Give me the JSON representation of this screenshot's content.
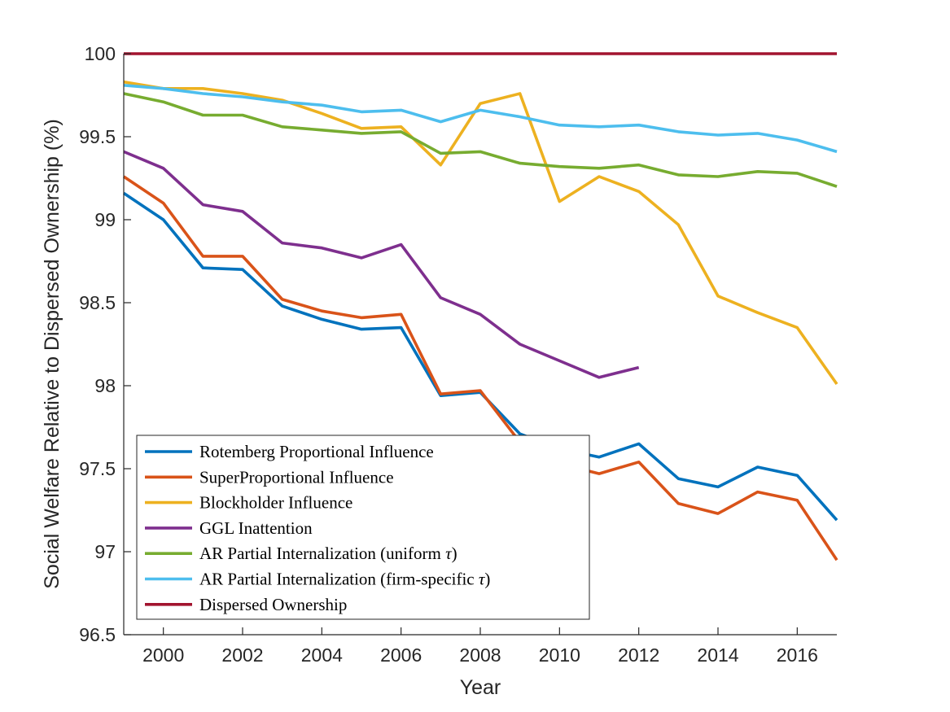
{
  "chart_data": {
    "type": "line",
    "title": "",
    "xlabel": "Year",
    "ylabel": "Social Welfare Relative to Dispersed Ownership (%)",
    "xlim": [
      1999,
      2017
    ],
    "ylim": [
      96.5,
      100
    ],
    "xticks": [
      2000,
      2002,
      2004,
      2006,
      2008,
      2010,
      2012,
      2014,
      2016
    ],
    "yticks": [
      96.5,
      97,
      97.5,
      98,
      98.5,
      99,
      99.5,
      100
    ],
    "ytick_labels": [
      "96.5",
      "97",
      "97.5",
      "98",
      "98.5",
      "99",
      "99.5",
      "100"
    ],
    "grid": false,
    "legend_position": "bottom-left",
    "series": [
      {
        "name": "Rotemberg Proportional Influence",
        "color": "#0072BD",
        "x": [
          1999,
          2000,
          2001,
          2002,
          2003,
          2004,
          2005,
          2006,
          2007,
          2008,
          2009,
          2010,
          2011,
          2012,
          2013,
          2014,
          2015,
          2016,
          2017
        ],
        "values": [
          99.16,
          99.0,
          98.71,
          98.7,
          98.48,
          98.4,
          98.34,
          98.35,
          97.94,
          97.96,
          97.71,
          97.62,
          97.57,
          97.65,
          97.44,
          97.39,
          97.51,
          97.46,
          97.19
        ]
      },
      {
        "name": "SuperProportional Influence",
        "color": "#D95319",
        "x": [
          1999,
          2000,
          2001,
          2002,
          2003,
          2004,
          2005,
          2006,
          2007,
          2008,
          2009,
          2010,
          2011,
          2012,
          2013,
          2014,
          2015,
          2016,
          2017
        ],
        "values": [
          99.26,
          99.1,
          98.78,
          98.78,
          98.52,
          98.45,
          98.41,
          98.43,
          97.95,
          97.97,
          97.66,
          97.53,
          97.47,
          97.54,
          97.29,
          97.23,
          97.36,
          97.31,
          96.95
        ]
      },
      {
        "name": "Blockholder Influence",
        "color": "#EDB120",
        "x": [
          1999,
          2000,
          2001,
          2002,
          2003,
          2004,
          2005,
          2006,
          2007,
          2008,
          2009,
          2010,
          2011,
          2012,
          2013,
          2014,
          2015,
          2016,
          2017
        ],
        "values": [
          99.83,
          99.79,
          99.79,
          99.76,
          99.72,
          99.64,
          99.55,
          99.56,
          99.33,
          99.7,
          99.76,
          99.11,
          99.26,
          99.17,
          98.97,
          98.54,
          98.44,
          98.35,
          98.01
        ]
      },
      {
        "name": "GGL Inattention",
        "color": "#7E2F8E",
        "x": [
          1999,
          2000,
          2001,
          2002,
          2003,
          2004,
          2005,
          2006,
          2007,
          2008,
          2009,
          2010,
          2011,
          2012
        ],
        "values": [
          99.41,
          99.31,
          99.09,
          99.05,
          98.86,
          98.83,
          98.77,
          98.85,
          98.53,
          98.43,
          98.25,
          98.15,
          98.05,
          98.11
        ]
      },
      {
        "name": "AR Partial Internalization (uniform τ)",
        "name_prefix": "AR Partial Internalization (uniform ",
        "name_symbol": "τ",
        "name_suffix": ")",
        "color": "#77AC30",
        "x": [
          1999,
          2000,
          2001,
          2002,
          2003,
          2004,
          2005,
          2006,
          2007,
          2008,
          2009,
          2010,
          2011,
          2012,
          2013,
          2014,
          2015,
          2016,
          2017
        ],
        "values": [
          99.76,
          99.71,
          99.63,
          99.63,
          99.56,
          99.54,
          99.52,
          99.53,
          99.4,
          99.41,
          99.34,
          99.32,
          99.31,
          99.33,
          99.27,
          99.26,
          99.29,
          99.28,
          99.2
        ]
      },
      {
        "name": "AR Partial Internalization (firm-specific τ)",
        "name_prefix": "AR Partial Internalization (firm-specific ",
        "name_symbol": "τ",
        "name_suffix": ")",
        "color": "#4DBEEE",
        "x": [
          1999,
          2000,
          2001,
          2002,
          2003,
          2004,
          2005,
          2006,
          2007,
          2008,
          2009,
          2010,
          2011,
          2012,
          2013,
          2014,
          2015,
          2016,
          2017
        ],
        "values": [
          99.81,
          99.79,
          99.76,
          99.74,
          99.71,
          99.69,
          99.65,
          99.66,
          99.59,
          99.66,
          99.62,
          99.57,
          99.56,
          99.57,
          99.53,
          99.51,
          99.52,
          99.48,
          99.41
        ]
      },
      {
        "name": "Dispersed Ownership",
        "color": "#A2142F",
        "x": [
          1999,
          2017
        ],
        "values": [
          100,
          100
        ]
      }
    ]
  }
}
